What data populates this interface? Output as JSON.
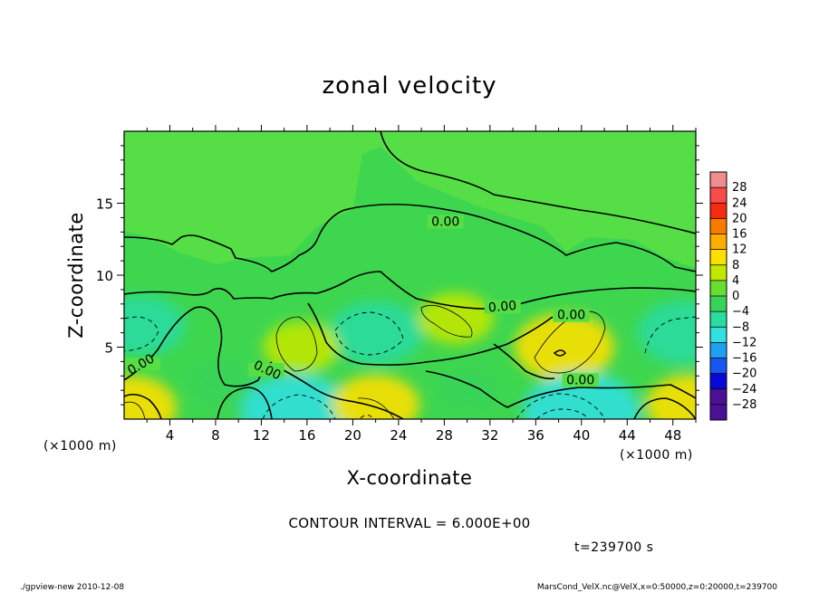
{
  "chart_data": {
    "type": "heatmap",
    "title": "zonal velocity",
    "xlabel": "X-coordinate",
    "ylabel": "Z-coordinate",
    "x_unit": "(×1000 m)",
    "y_unit": "(×1000 m)",
    "xlim": [
      0,
      50
    ],
    "ylim": [
      0,
      20
    ],
    "x_ticks": [
      "4",
      "8",
      "12",
      "16",
      "20",
      "24",
      "28",
      "32",
      "36",
      "40",
      "44",
      "48"
    ],
    "y_ticks": [
      "5",
      "10",
      "15"
    ],
    "colorbar_levels": [
      "28",
      "24",
      "20",
      "16",
      "12",
      "8",
      "4",
      "0",
      "−4",
      "−8",
      "−12",
      "−16",
      "−20",
      "−24",
      "−28"
    ],
    "contour_labels": [
      "0.00",
      "0.00",
      "0.00",
      "0.00",
      "0.00",
      "0.00"
    ],
    "contour_interval": "CONTOUR INTERVAL = 6.000E+00",
    "time_label": "t=239700 s",
    "features": [
      {
        "x": 38.5,
        "z": 5.0,
        "value": 10
      },
      {
        "x": 40.0,
        "z": 0.5,
        "value": -13
      },
      {
        "x": 15.0,
        "z": 0.5,
        "value": -12
      },
      {
        "x": 22.0,
        "z": 6.0,
        "value": -9
      },
      {
        "x": 1.5,
        "z": 6.5,
        "value": -8
      },
      {
        "x": 49.0,
        "z": 6.0,
        "value": -9
      },
      {
        "x": 15.5,
        "z": 5.0,
        "value": 6
      },
      {
        "x": 29.0,
        "z": 7.0,
        "value": 6
      },
      {
        "x": 0.5,
        "z": 0.8,
        "value": 9
      },
      {
        "x": 22.0,
        "z": 1.0,
        "value": 8
      },
      {
        "x": 49.5,
        "z": 1.0,
        "value": 8
      },
      {
        "x": 8.5,
        "z": 2.5,
        "value": -4
      },
      {
        "x": 30.0,
        "z": 2.0,
        "value": -3
      }
    ]
  },
  "footer": {
    "left": "./gpview-new  2010-12-08",
    "right": "MarsCond_VelX.nc@VelX,x=0:50000,z=0:20000,t=239700"
  },
  "colors": {
    "field_base": "#3ed64f",
    "upper_region": "#55de46"
  }
}
